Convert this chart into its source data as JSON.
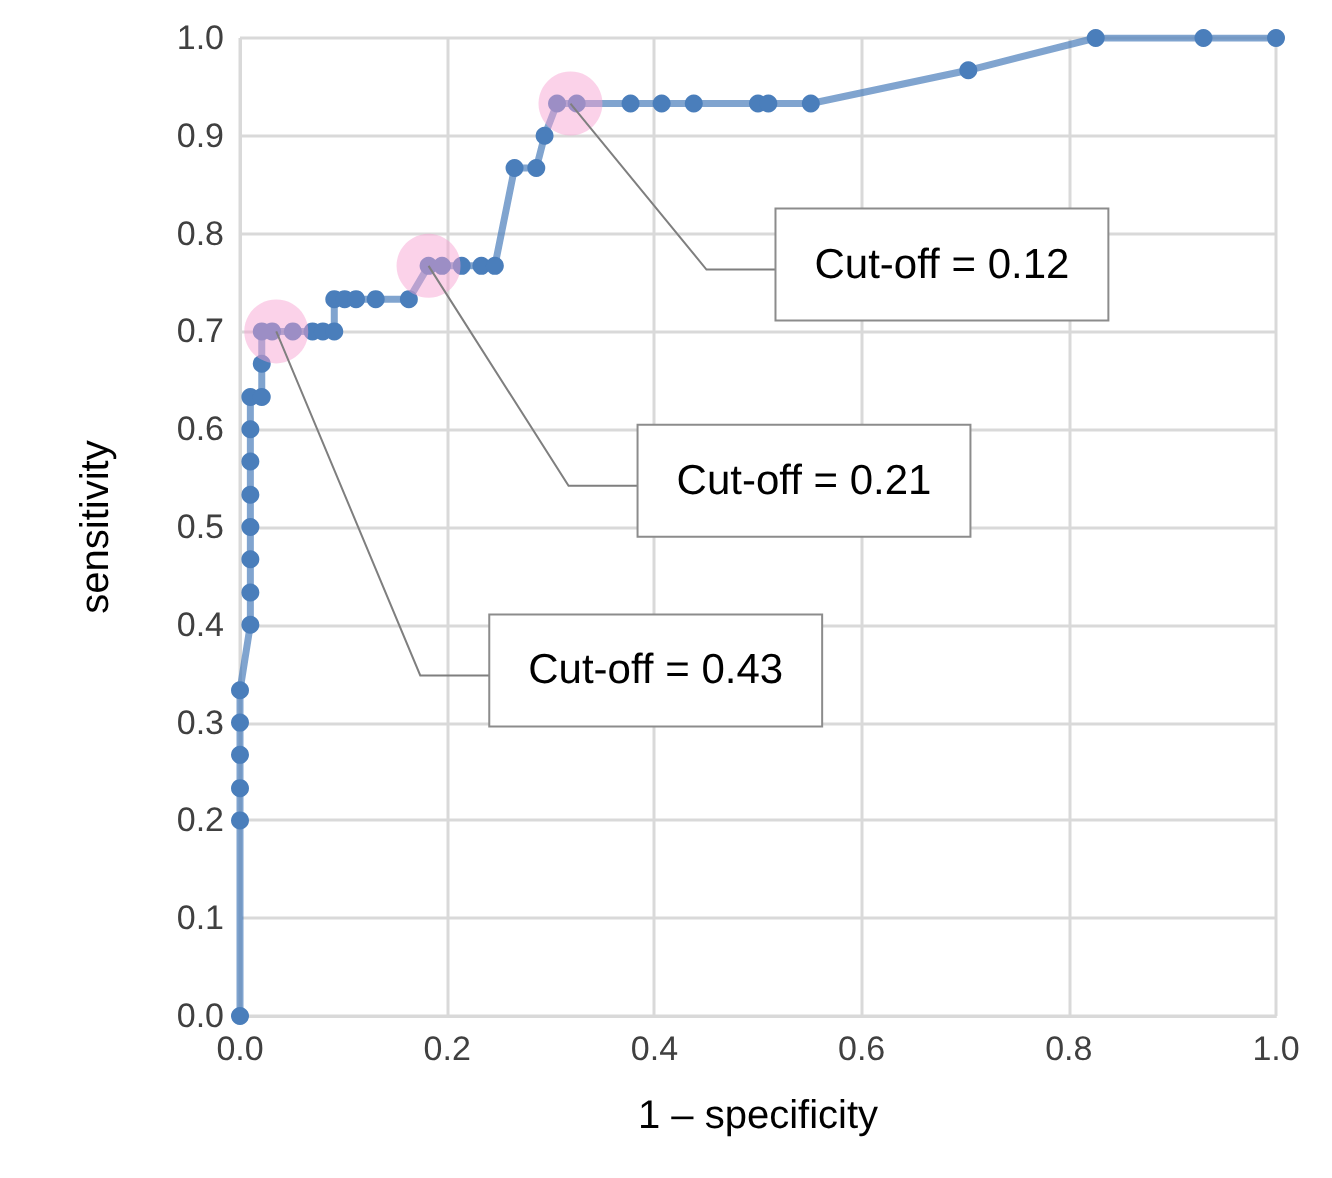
{
  "chart_data": {
    "type": "line",
    "xlabel": "1 – specificity",
    "ylabel": "sensitivity",
    "xlim": [
      0,
      1
    ],
    "xticks": [
      {
        "value": 0,
        "label": "0.0"
      },
      0.2,
      0.4,
      0.6,
      0.8,
      {
        "value": 1,
        "label": "1.0"
      }
    ],
    "ylim": [
      0,
      1
    ],
    "yticks": [
      {
        "value": 0,
        "label": "0.0"
      },
      0.1,
      0.2,
      0.3,
      0.4,
      0.5,
      0.6,
      0.7,
      0.8,
      0.9,
      {
        "value": 1,
        "label": "1.0"
      }
    ],
    "grid": true,
    "marker": "circle",
    "line_style": "solid",
    "series": [
      {
        "color": "#4a7ebb",
        "x": [
          0,
          0,
          0,
          0,
          0,
          0,
          0.01,
          0.01,
          0.01,
          0.01,
          0.01,
          0.01,
          0.01,
          0.01,
          0.021,
          0.021,
          0.021,
          0.031,
          0.051,
          0.07,
          0.08,
          0.091,
          0.091,
          0.101,
          0.112,
          0.131,
          0.163,
          0.182,
          0.195,
          0.214,
          0.233,
          0.246,
          0.265,
          0.286,
          0.294,
          0.306,
          0.325,
          0.377,
          0.407,
          0.438,
          0.5,
          0.51,
          0.551,
          0.703,
          0.826,
          0.93,
          1
        ],
        "values": [
          0,
          0.2,
          0.233,
          0.267,
          0.3,
          0.333,
          0.4,
          0.433,
          0.467,
          0.5,
          0.533,
          0.567,
          0.6,
          0.633,
          0.633,
          0.667,
          0.7,
          0.7,
          0.7,
          0.7,
          0.7,
          0.7,
          0.733,
          0.733,
          0.733,
          0.733,
          0.733,
          0.767,
          0.767,
          0.767,
          0.767,
          0.767,
          0.867,
          0.867,
          0.9,
          0.933,
          0.933,
          0.933,
          0.933,
          0.933,
          0.933,
          0.933,
          0.933,
          0.967,
          1,
          1,
          1
        ]
      }
    ],
    "annotations": [
      {
        "text": "Cut-off = 0.12",
        "x": 0.319,
        "y": 0.933
      },
      {
        "text": "Cut-off = 0.21",
        "x": 0.182,
        "y": 0.767
      },
      {
        "text": "Cut-off = 0.43",
        "x": 0.035,
        "y": 0.7
      }
    ]
  }
}
